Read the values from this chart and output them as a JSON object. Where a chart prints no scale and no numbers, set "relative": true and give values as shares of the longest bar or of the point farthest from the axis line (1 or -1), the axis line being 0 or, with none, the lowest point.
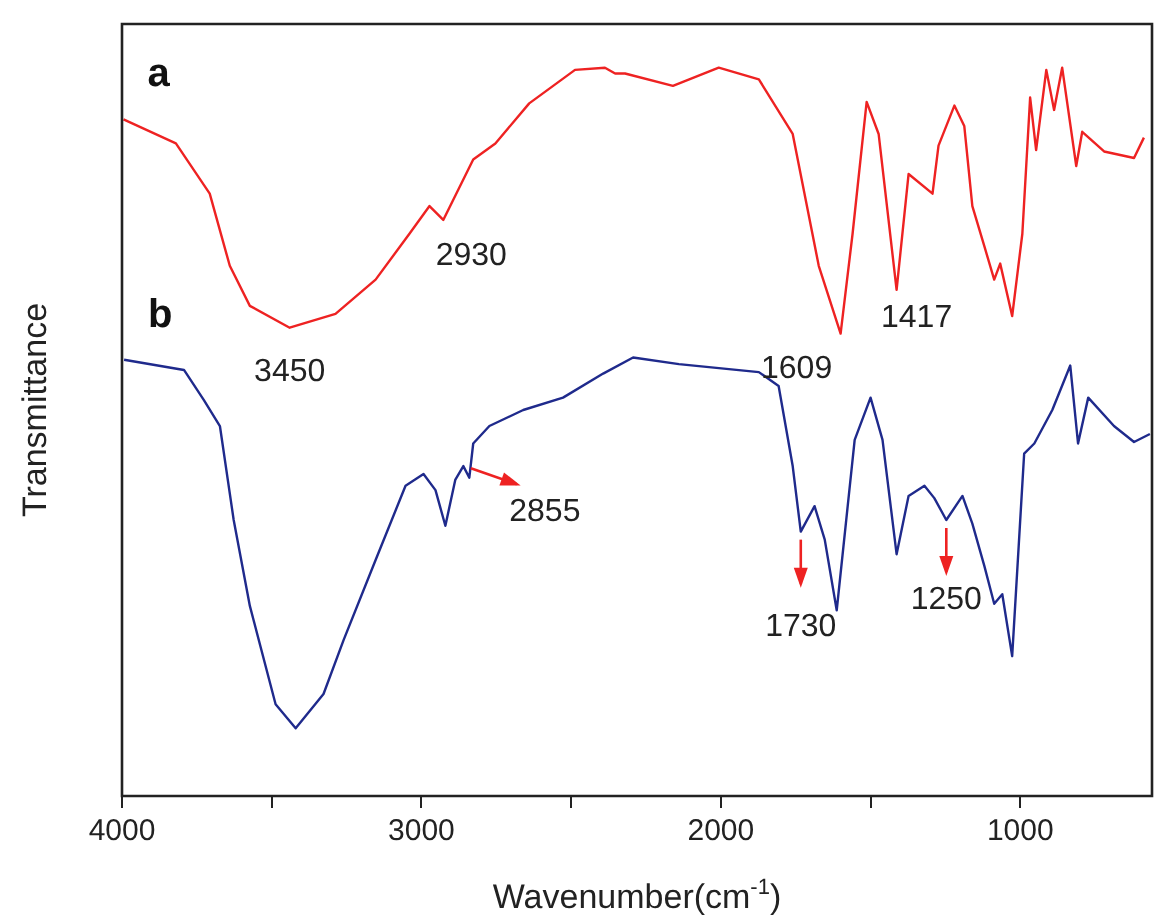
{
  "chart_data": {
    "type": "line",
    "relative": true,
    "xlabel": "Wavenumber(cm$^{-1}$)",
    "ylabel": "Transmittance",
    "xlim": [
      4000,
      560
    ],
    "xticks": [
      4000,
      {
        "value": 3500,
        "label": null
      },
      3000,
      {
        "value": 2500,
        "label": null
      },
      2000,
      {
        "value": 1500,
        "label": null
      },
      1000
    ],
    "marker": "none",
    "line_style": "solid",
    "series": [
      {
        "name": "a",
        "color": "#ee2222",
        "x": [
          3995,
          3820,
          3707,
          3640,
          3573,
          3440,
          3287,
          3153,
          3040,
          2973,
          2927,
          2827,
          2753,
          2640,
          2487,
          2387,
          2353,
          2320,
          2160,
          2007,
          1873,
          1760,
          1673,
          1600,
          1560,
          1513,
          1473,
          1413,
          1373,
          1293,
          1273,
          1220,
          1187,
          1160,
          1120,
          1087,
          1067,
          1027,
          993,
          967,
          947,
          913,
          887,
          860,
          813,
          793,
          720,
          620,
          587
        ],
        "values": [
          0.929,
          0.896,
          0.827,
          0.728,
          0.673,
          0.643,
          0.662,
          0.709,
          0.772,
          0.81,
          0.791,
          0.874,
          0.896,
          0.951,
          0.997,
          1.0,
          0.992,
          0.992,
          0.975,
          1.0,
          0.984,
          0.909,
          0.728,
          0.635,
          0.772,
          0.953,
          0.909,
          0.695,
          0.854,
          0.827,
          0.893,
          0.948,
          0.92,
          0.81,
          0.755,
          0.709,
          0.731,
          0.659,
          0.772,
          0.959,
          0.887,
          0.997,
          0.942,
          1.0,
          0.865,
          0.912,
          0.885,
          0.876,
          0.904
        ]
      },
      {
        "name": "b",
        "color": "#1f2a8c",
        "x": [
          3993,
          3793,
          3727,
          3673,
          3627,
          3573,
          3487,
          3420,
          3327,
          3260,
          3153,
          3053,
          2993,
          2953,
          2920,
          2887,
          2860,
          2840,
          2827,
          2773,
          2660,
          2527,
          2393,
          2293,
          2140,
          1873,
          1807,
          1760,
          1733,
          1687,
          1653,
          1613,
          1553,
          1500,
          1460,
          1413,
          1373,
          1320,
          1287,
          1247,
          1193,
          1160,
          1120,
          1087,
          1060,
          1027,
          987,
          953,
          893,
          833,
          807,
          773,
          687,
          620,
          567
        ],
        "values": [
          0.599,
          0.585,
          0.544,
          0.508,
          0.379,
          0.261,
          0.126,
          0.093,
          0.14,
          0.214,
          0.324,
          0.426,
          0.442,
          0.42,
          0.371,
          0.434,
          0.453,
          0.437,
          0.484,
          0.508,
          0.53,
          0.547,
          0.58,
          0.602,
          0.593,
          0.582,
          0.563,
          0.453,
          0.363,
          0.398,
          0.352,
          0.255,
          0.489,
          0.547,
          0.489,
          0.332,
          0.412,
          0.426,
          0.409,
          0.379,
          0.412,
          0.374,
          0.316,
          0.264,
          0.277,
          0.192,
          0.47,
          0.484,
          0.53,
          0.591,
          0.484,
          0.547,
          0.508,
          0.486,
          0.497
        ]
      }
    ],
    "annotations": [
      {
        "text": "3450",
        "x": 3440,
        "y": 0.643
      },
      {
        "text": "2930",
        "x": 2927,
        "y": 0.791
      },
      {
        "text": "1609",
        "x": 1600,
        "y": 0.635
      },
      {
        "text": "1417",
        "x": 1413,
        "y": 0.695
      },
      {
        "text": "2855",
        "x": 2855,
        "y": 0.45
      },
      {
        "text": "1730",
        "x": 1733,
        "y": 0.363
      },
      {
        "text": "1250",
        "x": 1247,
        "y": 0.379
      }
    ]
  }
}
